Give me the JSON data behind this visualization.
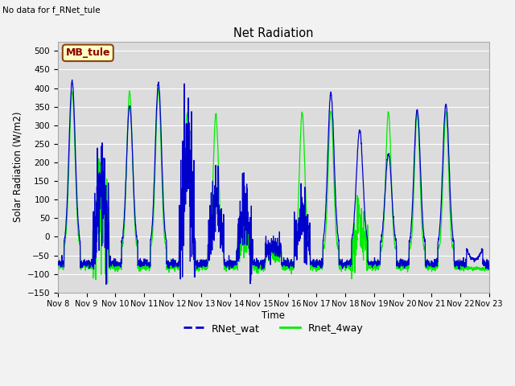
{
  "title": "Net Radiation",
  "subtitle": "No data for f_RNet_tule",
  "xlabel": "Time",
  "ylabel": "Solar Radiation (W/m2)",
  "ylim": [
    -150,
    525
  ],
  "yticks": [
    -150,
    -100,
    -50,
    0,
    50,
    100,
    150,
    200,
    250,
    300,
    350,
    400,
    450,
    500
  ],
  "xtick_labels": [
    "Nov 8",
    "Nov 9",
    "Nov 10",
    "Nov 11",
    "Nov 12",
    "Nov 13",
    "Nov 14",
    "Nov 15",
    "Nov 16",
    "Nov 17",
    "Nov 18",
    "Nov 19",
    "Nov 20",
    "Nov 21",
    "Nov 22",
    "Nov 23"
  ],
  "color_blue": "#0000CC",
  "color_green": "#00EE00",
  "legend_entries": [
    "RNet_wat",
    "Rnet_4way"
  ],
  "box_label": "MB_tule",
  "box_facecolor": "#FFFFC0",
  "box_edgecolor": "#8B4513",
  "plot_bg": "#DCDCDC",
  "fig_bg": "#F2F2F2",
  "n_days": 15,
  "points_per_day": 144
}
